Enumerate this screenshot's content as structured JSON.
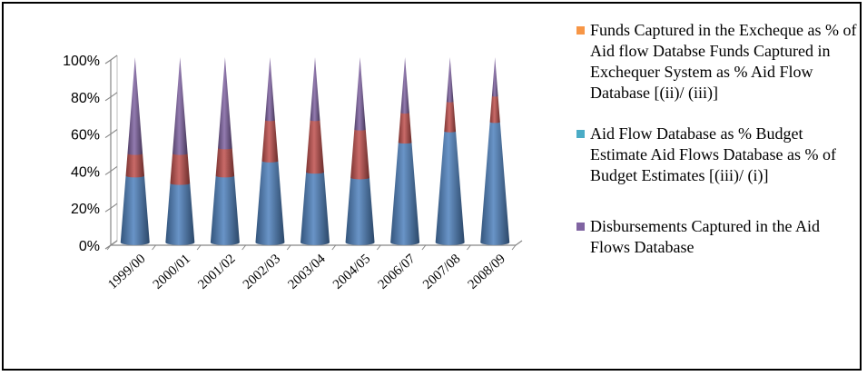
{
  "chart_data": {
    "type": "bar",
    "style": "3d-cone-stacked-100",
    "categories": [
      "1999/00",
      "2000/01",
      "2001/02",
      "2002/03",
      "2003/04",
      "2004/05",
      "2006/07",
      "2007/08",
      "2008/09"
    ],
    "series": [
      {
        "name": "Aid Flow Database as % Budget Estimate  Aid Flows Database as % of Budget Estimates [(iii)/(i)]",
        "color": "#4F81BD",
        "values": [
          36,
          32,
          36,
          44,
          38,
          35,
          54,
          60,
          65
        ]
      },
      {
        "name": "Funds Captured in the Excheque as % of Aid flow Databse Funds Captured in Exchequer System as % Aid Flow Database [(ii)/ (iii)]",
        "color": "#C0504D",
        "values": [
          12,
          16,
          15,
          22,
          28,
          26,
          16,
          16,
          14
        ]
      },
      {
        "name": "Disbursements Captured in the Aid Flows Database",
        "color": "#8064A2",
        "values": [
          52,
          52,
          49,
          34,
          34,
          39,
          30,
          24,
          21
        ]
      }
    ],
    "yticks": [
      "0%",
      "20%",
      "40%",
      "60%",
      "80%",
      "100%"
    ],
    "ylim": [
      0,
      100
    ],
    "grid": false,
    "legend_position": "right"
  },
  "legend": {
    "items": [
      {
        "label": "Funds Captured in the Excheque as % of Aid flow Databse Funds Captured in Exchequer System as % Aid Flow Database [(ii)/ (iii)]",
        "color": "#F79646"
      },
      {
        "label": "Aid Flow Database as % Budget Estimate  Aid Flows Database as % of Budget Estimates [(iii)/ (i)]",
        "color": "#4BACC6"
      },
      {
        "label": "Disbursements Captured in the Aid Flows Database",
        "color": "#8064A2"
      }
    ]
  }
}
